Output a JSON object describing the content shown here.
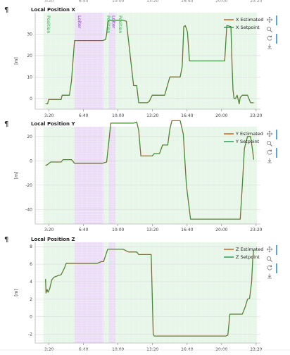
{
  "page": {
    "top_ticks": [
      "3:20",
      "6:40",
      "10:00",
      "13:20",
      "16:40",
      "20:00",
      "23:20"
    ],
    "pilcrow": "¶",
    "toolbar_icons": [
      "move-icon",
      "zoom-icon",
      "reset-icon",
      "save-icon"
    ]
  },
  "colors": {
    "estimated": "#c85a10",
    "setpoint": "#1a9a50",
    "mode_position_bg": "#e6f7e8",
    "mode_loiter_bg": "#ecdcf7",
    "mode_position_text": "#22b04a",
    "mode_loiter_text": "#8a3ad0",
    "toolbar_accent": "#5aa5d6"
  },
  "chart_data": [
    {
      "type": "line",
      "title": "Local Position X",
      "ylabel": "[m]",
      "ylim": [
        -5,
        40
      ],
      "yticks": [
        0,
        10,
        20,
        30
      ],
      "xlim": [
        2,
        23.75
      ],
      "xticks": [
        3.333,
        6.667,
        10,
        13.333,
        16.667,
        20,
        23.333
      ],
      "xticklabels": [
        "3:20",
        "6:40",
        "10:00",
        "13:20",
        "16:40",
        "20:00",
        "23:20"
      ],
      "grid": true,
      "legend": "top-right",
      "modes": [
        {
          "label": "Position",
          "from": 2.8,
          "to": 5.8,
          "kind": "position"
        },
        {
          "label": "Loiter",
          "from": 5.8,
          "to": 8.6,
          "kind": "loiter"
        },
        {
          "label": "Position",
          "from": 8.6,
          "to": 9.1,
          "kind": "position"
        },
        {
          "label": "Loiter",
          "from": 9.1,
          "to": 9.75,
          "kind": "loiter"
        },
        {
          "label": "Position",
          "from": 9.75,
          "to": 23.4,
          "kind": "position"
        }
      ],
      "series": [
        {
          "name": "X Estimated",
          "role": "estimated",
          "x": [
            3.0,
            3.2,
            3.3,
            3.5,
            4.0,
            4.5,
            4.6,
            4.7,
            5.3,
            5.5,
            5.8,
            6.5,
            7.5,
            8.5,
            8.8,
            8.9,
            9.0,
            9.1,
            9.3,
            9.6,
            10.3,
            10.5,
            10.8,
            11.5,
            11.8,
            12.0,
            12.2,
            12.5,
            12.8,
            13.0,
            13.3,
            13.8,
            14.0,
            14.5,
            15.0,
            15.2,
            15.6,
            16.0,
            16.2,
            16.35,
            16.5,
            16.7,
            16.9,
            17.0,
            17.5,
            18.5,
            19.5,
            20.0,
            20.3,
            20.5,
            20.9,
            21.0,
            21.1,
            21.2,
            21.35,
            21.5,
            21.7,
            21.8,
            22.0,
            22.3,
            22.5,
            22.8,
            23.0,
            23.1
          ],
          "y": [
            -2.5,
            -2.5,
            -0.5,
            -0.5,
            -0.5,
            -0.5,
            1.5,
            1.5,
            1.5,
            8.0,
            27.0,
            27.0,
            27.0,
            27.0,
            27.5,
            30.0,
            35.0,
            36.5,
            36.5,
            36.5,
            36.5,
            36.5,
            36.0,
            6.0,
            6.0,
            -2.0,
            -2.0,
            -2.0,
            -2.0,
            -1.5,
            1.5,
            1.5,
            1.5,
            1.5,
            10.0,
            10.0,
            10.0,
            10.0,
            15.0,
            33.5,
            34.0,
            31.0,
            17.5,
            17.5,
            17.5,
            17.5,
            17.5,
            17.5,
            17.5,
            34.0,
            33.5,
            17.5,
            4.0,
            0.0,
            0.0,
            1.5,
            -2.5,
            0.5,
            1.5,
            1.5,
            1.5,
            -2.0,
            -2.0,
            -2.0
          ]
        },
        {
          "name": "X Setpoint",
          "role": "setpoint",
          "x": [
            3.0,
            3.2,
            3.3,
            3.5,
            4.0,
            4.5,
            4.6,
            4.7,
            5.3,
            5.5,
            5.8,
            6.5,
            7.5,
            8.5,
            8.8,
            8.9,
            9.0,
            9.1,
            9.3,
            9.6,
            10.3,
            10.5,
            10.8,
            11.5,
            11.8,
            12.0,
            12.2,
            12.5,
            12.8,
            13.0,
            13.3,
            13.8,
            14.0,
            14.5,
            15.0,
            15.2,
            15.6,
            16.0,
            16.2,
            16.35,
            16.5,
            16.7,
            16.9,
            17.0,
            17.5,
            18.5,
            19.5,
            20.0,
            20.3,
            20.5,
            20.9,
            21.0,
            21.1,
            21.2,
            21.35,
            21.5,
            21.7,
            21.8,
            22.0,
            22.3,
            22.5,
            22.8,
            23.0,
            23.1
          ],
          "y": [
            -2.5,
            -2.5,
            -0.5,
            -0.5,
            -0.5,
            -0.5,
            1.5,
            1.5,
            1.5,
            8.0,
            27.0,
            27.0,
            27.0,
            27.0,
            27.5,
            30.0,
            35.0,
            36.5,
            36.5,
            36.5,
            36.5,
            36.5,
            36.0,
            6.0,
            6.0,
            -2.0,
            -2.0,
            -2.0,
            -2.0,
            -1.5,
            1.5,
            1.5,
            1.5,
            1.5,
            10.0,
            10.0,
            10.0,
            10.0,
            15.0,
            33.5,
            34.0,
            31.0,
            17.5,
            17.5,
            17.5,
            17.5,
            17.5,
            17.5,
            17.5,
            34.0,
            33.5,
            17.5,
            4.0,
            0.0,
            0.0,
            1.5,
            -2.5,
            0.5,
            1.5,
            1.5,
            1.5,
            -2.0,
            -2.0,
            -2.0
          ]
        }
      ]
    },
    {
      "type": "line",
      "title": "Local Position Y",
      "ylabel": "[m]",
      "ylim": [
        -52,
        28
      ],
      "yticks": [
        -40,
        -20,
        0,
        20
      ],
      "xlim": [
        2,
        23.75
      ],
      "xticks": [
        3.333,
        6.667,
        10,
        13.333,
        16.667,
        20,
        23.333
      ],
      "xticklabels": [
        "3:20",
        "6:40",
        "10:00",
        "13:20",
        "16:40",
        "20:00",
        "23:20"
      ],
      "grid": true,
      "legend": "top-right",
      "modes": [
        {
          "label": "",
          "from": 2.8,
          "to": 5.8,
          "kind": "position"
        },
        {
          "label": "",
          "from": 5.8,
          "to": 8.6,
          "kind": "loiter"
        },
        {
          "label": "",
          "from": 8.6,
          "to": 9.1,
          "kind": "position"
        },
        {
          "label": "",
          "from": 9.1,
          "to": 9.75,
          "kind": "loiter"
        },
        {
          "label": "",
          "from": 9.75,
          "to": 23.4,
          "kind": "position"
        }
      ],
      "series": [
        {
          "name": "Y Estimated",
          "role": "estimated",
          "x": [
            3.0,
            3.2,
            3.5,
            4.0,
            4.5,
            4.7,
            5.0,
            5.5,
            5.8,
            6.5,
            7.5,
            8.5,
            8.9,
            9.1,
            9.3,
            9.6,
            10.5,
            11.5,
            11.8,
            12.0,
            12.2,
            12.6,
            12.8,
            13.3,
            13.5,
            13.8,
            14.0,
            14.3,
            14.8,
            15.0,
            15.2,
            15.7,
            16.0,
            16.3,
            16.6,
            17.0,
            17.5,
            18.5,
            19.5,
            20.0,
            20.3,
            20.6,
            21.0,
            21.3,
            21.5,
            21.8,
            22.0,
            22.2,
            22.5,
            22.8,
            23.0,
            23.1
          ],
          "y": [
            -4.0,
            -3.0,
            -1.0,
            -1.0,
            -1.0,
            1.0,
            1.0,
            1.0,
            -2.0,
            -2.0,
            -2.0,
            -2.0,
            -1.0,
            15.0,
            31.0,
            31.0,
            31.0,
            31.0,
            32.0,
            25.0,
            4.0,
            4.0,
            4.0,
            4.0,
            6.0,
            6.0,
            6.0,
            13.0,
            13.0,
            26.0,
            33.0,
            33.0,
            33.0,
            22.0,
            -20.0,
            -48.0,
            -48.0,
            -48.0,
            -48.0,
            -48.0,
            -48.0,
            -48.0,
            -48.0,
            -48.0,
            -48.0,
            -48.0,
            -20.0,
            10.0,
            20.0,
            20.0,
            8.0,
            1.0
          ]
        },
        {
          "name": "Y Setpoint",
          "role": "setpoint",
          "x": [
            3.0,
            3.2,
            3.5,
            4.0,
            4.5,
            4.7,
            5.0,
            5.5,
            5.8,
            6.5,
            7.5,
            8.5,
            8.9,
            9.1,
            9.3,
            9.6,
            10.5,
            11.5,
            11.8,
            12.0,
            12.2,
            12.6,
            12.8,
            13.3,
            13.5,
            13.8,
            14.0,
            14.3,
            14.8,
            15.0,
            15.2,
            15.7,
            16.0,
            16.3,
            16.6,
            17.0,
            17.5,
            18.5,
            19.5,
            20.0,
            20.3,
            20.6,
            21.0,
            21.3,
            21.5,
            21.8,
            22.0,
            22.2,
            22.5,
            22.8,
            23.0,
            23.1
          ],
          "y": [
            -4.0,
            -3.0,
            -1.0,
            -1.0,
            -1.0,
            1.0,
            1.0,
            1.0,
            -2.0,
            -2.0,
            -2.0,
            -2.0,
            -1.0,
            15.0,
            31.0,
            31.0,
            31.0,
            31.0,
            32.0,
            25.0,
            4.0,
            4.0,
            4.0,
            4.0,
            6.0,
            6.0,
            6.0,
            13.0,
            13.0,
            26.0,
            33.0,
            33.0,
            33.0,
            22.0,
            -20.0,
            -48.0,
            -48.0,
            -48.0,
            -48.0,
            -48.0,
            -48.0,
            -48.0,
            -48.0,
            -48.0,
            -48.0,
            -48.0,
            -20.0,
            10.0,
            20.0,
            20.0,
            8.0,
            1.0
          ]
        }
      ]
    },
    {
      "type": "line",
      "title": "Local Position Z",
      "ylabel": "[m]",
      "ylim": [
        -3,
        8.5
      ],
      "yticks": [
        -2,
        0,
        2,
        4,
        6,
        8
      ],
      "xlim": [
        2,
        23.75
      ],
      "xticks": [
        3.333,
        6.667,
        10,
        13.333,
        16.667,
        20,
        23.333
      ],
      "xticklabels": [
        "3:20",
        "6:40",
        "10:00",
        "13:20",
        "16:40",
        "20:00",
        "23:20"
      ],
      "grid": true,
      "legend": "top-right",
      "modes": [
        {
          "label": "",
          "from": 2.8,
          "to": 5.8,
          "kind": "position"
        },
        {
          "label": "",
          "from": 5.8,
          "to": 8.6,
          "kind": "loiter"
        },
        {
          "label": "",
          "from": 8.6,
          "to": 9.1,
          "kind": "position"
        },
        {
          "label": "",
          "from": 9.1,
          "to": 9.75,
          "kind": "loiter"
        },
        {
          "label": "",
          "from": 9.75,
          "to": 23.4,
          "kind": "position"
        }
      ],
      "series": [
        {
          "name": "Z Estimated",
          "role": "estimated",
          "x": [
            3.0,
            3.05,
            3.15,
            3.25,
            3.4,
            3.6,
            3.8,
            4.0,
            4.2,
            4.5,
            4.8,
            5.0,
            5.5,
            6.0,
            7.0,
            8.0,
            8.4,
            8.6,
            9.0,
            9.5,
            10.0,
            10.5,
            11.0,
            11.5,
            11.8,
            12.0,
            12.5,
            13.0,
            13.2,
            13.4,
            13.5,
            14.0,
            15.0,
            16.0,
            17.0,
            18.0,
            19.0,
            20.0,
            20.4,
            20.6,
            20.8,
            21.0,
            21.5,
            22.0,
            22.3,
            22.5,
            22.7,
            22.9,
            23.0,
            23.1
          ],
          "y": [
            4.3,
            2.7,
            3.1,
            2.8,
            3.2,
            4.2,
            4.5,
            4.6,
            4.7,
            4.8,
            5.5,
            6.1,
            6.1,
            6.1,
            6.1,
            6.1,
            6.3,
            6.3,
            7.7,
            7.7,
            7.7,
            7.7,
            7.4,
            7.4,
            7.4,
            7.1,
            7.1,
            7.1,
            7.1,
            -2.0,
            -2.2,
            -2.2,
            -2.2,
            -2.2,
            -2.2,
            -2.2,
            -2.2,
            -2.2,
            -2.2,
            -2.1,
            0.3,
            0.3,
            0.3,
            0.3,
            1.2,
            2.0,
            2.1,
            4.0,
            6.5,
            7.6
          ]
        },
        {
          "name": "Z Setpoint",
          "role": "setpoint",
          "x": [
            3.0,
            3.05,
            3.15,
            3.25,
            3.4,
            3.6,
            3.8,
            4.0,
            4.2,
            4.5,
            4.8,
            5.0,
            5.5,
            6.0,
            7.0,
            8.0,
            8.4,
            8.6,
            9.0,
            9.5,
            10.0,
            10.5,
            11.0,
            11.5,
            11.8,
            12.0,
            12.5,
            13.0,
            13.2,
            13.4,
            13.5,
            14.0,
            15.0,
            16.0,
            17.0,
            18.0,
            19.0,
            20.0,
            20.4,
            20.6,
            20.8,
            21.0,
            21.5,
            22.0,
            22.3,
            22.5,
            22.7,
            22.9,
            23.0,
            23.1
          ],
          "y": [
            4.3,
            2.7,
            3.1,
            2.8,
            3.2,
            4.2,
            4.5,
            4.6,
            4.7,
            4.8,
            5.5,
            6.1,
            6.1,
            6.1,
            6.1,
            6.1,
            6.3,
            6.3,
            7.7,
            7.7,
            7.7,
            7.7,
            7.4,
            7.4,
            7.4,
            7.1,
            7.1,
            7.1,
            7.1,
            -2.0,
            -2.2,
            -2.2,
            -2.2,
            -2.2,
            -2.2,
            -2.2,
            -2.2,
            -2.2,
            -2.2,
            -2.1,
            0.3,
            0.3,
            0.3,
            0.3,
            1.2,
            2.0,
            2.1,
            4.0,
            6.5,
            7.6
          ]
        }
      ]
    }
  ]
}
